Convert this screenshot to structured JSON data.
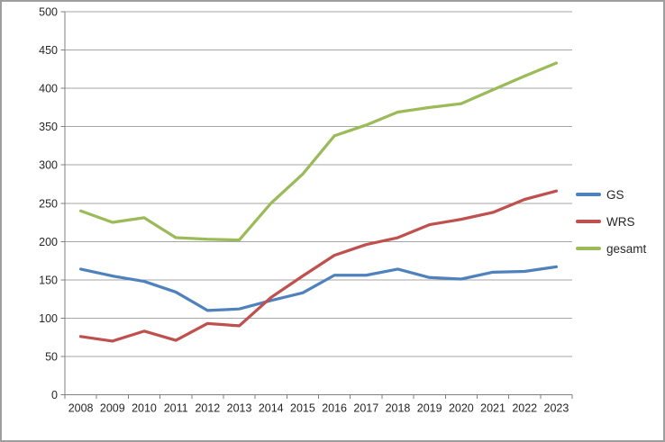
{
  "window": {
    "background_color": "#FFFFFF",
    "border_color": "#9E9E9E"
  },
  "chart_data": {
    "type": "line",
    "title": "",
    "xlabel": "",
    "ylabel": "",
    "grid": true,
    "legend_position": "right",
    "axis_color": "#808080",
    "gridline_color": "#A6A6A6",
    "text_color": "#262626",
    "categories": [
      "2008",
      "2009",
      "2010",
      "2011",
      "2012",
      "2013",
      "2014",
      "2015",
      "2016",
      "2017",
      "2018",
      "2019",
      "2020",
      "2021",
      "2022",
      "2023"
    ],
    "y_axis": {
      "min": 0,
      "max": 500,
      "step": 50,
      "tick_labels": [
        "0",
        "50",
        "100",
        "150",
        "200",
        "250",
        "300",
        "350",
        "400",
        "450",
        "500"
      ]
    },
    "series": [
      {
        "name": "GS",
        "color": "#4F81BD",
        "values": [
          164,
          155,
          148,
          134,
          110,
          112,
          123,
          133,
          156,
          156,
          164,
          153,
          151,
          160,
          161,
          167
        ]
      },
      {
        "name": "WRS",
        "color": "#C0504D",
        "values": [
          76,
          70,
          83,
          71,
          93,
          90,
          127,
          155,
          182,
          196,
          205,
          222,
          229,
          238,
          255,
          266
        ]
      },
      {
        "name": "gesamt",
        "color": "#9BBB59",
        "values": [
          240,
          225,
          231,
          205,
          203,
          202,
          250,
          288,
          338,
          352,
          369,
          375,
          380,
          398,
          416,
          433
        ]
      }
    ]
  }
}
